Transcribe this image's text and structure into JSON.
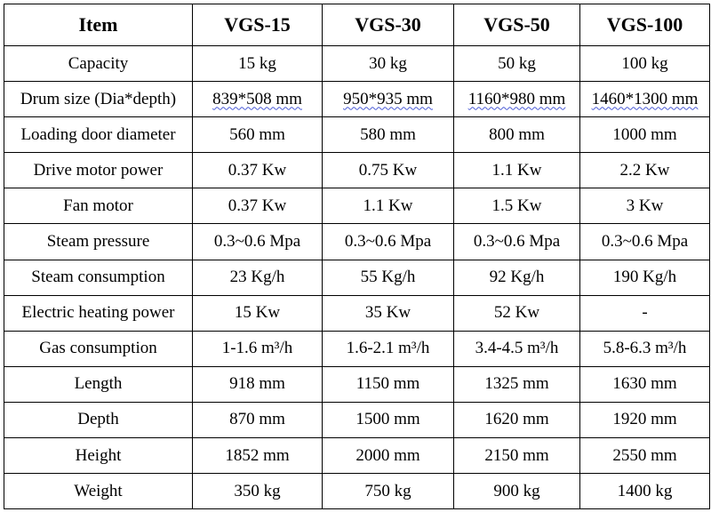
{
  "header": [
    "Item",
    "VGS-15",
    "VGS-30",
    "VGS-50",
    "VGS-100"
  ],
  "rows": [
    [
      "Capacity",
      "15 kg",
      "30 kg",
      "50 kg",
      "100 kg"
    ],
    [
      "Drum size (Dia*depth)",
      "839*508 mm",
      "950*935 mm",
      "1160*980 mm",
      "1460*1300 mm"
    ],
    [
      "Loading door diameter",
      "560 mm",
      "580 mm",
      "800 mm",
      "1000 mm"
    ],
    [
      "Drive motor power",
      "0.37 Kw",
      "0.75 Kw",
      "1.1 Kw",
      "2.2 Kw"
    ],
    [
      "Fan motor",
      "0.37 Kw",
      "1.1 Kw",
      "1.5 Kw",
      "3 Kw"
    ],
    [
      "Steam pressure",
      "0.3~0.6 Mpa",
      "0.3~0.6 Mpa",
      "0.3~0.6 Mpa",
      "0.3~0.6 Mpa"
    ],
    [
      "Steam consumption",
      "23 Kg/h",
      "55 Kg/h",
      "92 Kg/h",
      "190 Kg/h"
    ],
    [
      "Electric heating power",
      "15 Kw",
      "35 Kw",
      "52 Kw",
      "-"
    ],
    [
      "Gas consumption",
      "1-1.6 m³/h",
      "1.6-2.1 m³/h",
      "3.4-4.5 m³/h",
      "5.8-6.3 m³/h"
    ],
    [
      "Length",
      "918 mm",
      "1150 mm",
      "1325 mm",
      "1630 mm"
    ],
    [
      "Depth",
      "870 mm",
      "1500 mm",
      "1620 mm",
      "1920 mm"
    ],
    [
      "Height",
      "1852 mm",
      "2000 mm",
      "2150 mm",
      "2550 mm"
    ],
    [
      "Weight",
      "350 kg",
      "750 kg",
      "900 kg",
      "1400 kg"
    ]
  ]
}
